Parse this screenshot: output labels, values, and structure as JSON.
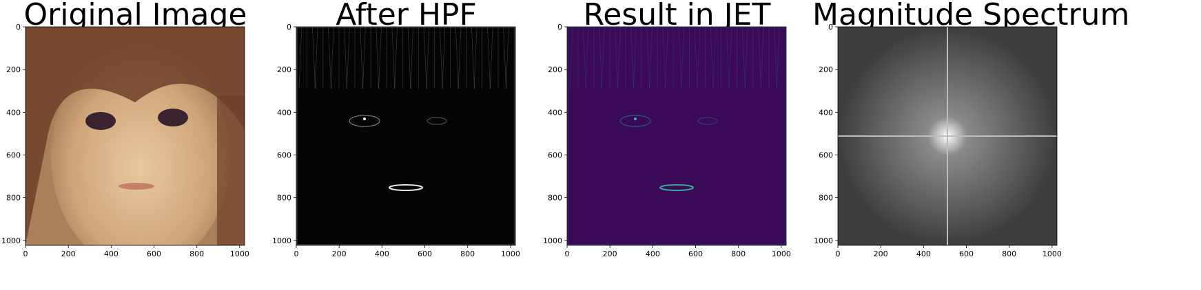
{
  "chart_data": [
    {
      "type": "image",
      "title": "Original Image",
      "image_kind": "photo-color",
      "colors": {
        "bg": "#a8805a",
        "hair": "#6e3f2a",
        "skin": "#e8c9a0",
        "eye": "#3a2230",
        "lip": "#c77f6a"
      },
      "xticks": [
        0,
        200,
        400,
        600,
        800,
        1000
      ],
      "yticks": [
        0,
        200,
        400,
        600,
        800,
        1000
      ],
      "xlim": [
        0,
        1023
      ],
      "ylim": [
        1023,
        0
      ]
    },
    {
      "type": "image",
      "title": "After HPF",
      "image_kind": "hpf-gray",
      "colors": {
        "bg": "#050505",
        "edge": "#9a9a9a",
        "hot": "#ffffff"
      },
      "xticks": [
        0,
        200,
        400,
        600,
        800,
        1000
      ],
      "yticks": [
        0,
        200,
        400,
        600,
        800,
        1000
      ],
      "xlim": [
        0,
        1023
      ],
      "ylim": [
        1023,
        0
      ]
    },
    {
      "type": "image",
      "title": "Result in JET",
      "image_kind": "hpf-colormap",
      "colors": {
        "bg": "#3b0a57",
        "edge": "#2a6f8f",
        "hot": "#35b8a0"
      },
      "xticks": [
        0,
        200,
        400,
        600,
        800,
        1000
      ],
      "yticks": [
        0,
        200,
        400,
        600,
        800,
        1000
      ],
      "xlim": [
        0,
        1023
      ],
      "ylim": [
        1023,
        0
      ]
    },
    {
      "type": "image",
      "title": "Magnitude Spectrum",
      "image_kind": "spectrum",
      "colors": {
        "bg": "#3d3d3d",
        "line": "#bdbdbd",
        "center": "#ffffff"
      },
      "xticks": [
        0,
        200,
        400,
        600,
        800,
        1000
      ],
      "yticks": [
        0,
        200,
        400,
        600,
        800,
        1000
      ],
      "xlim": [
        0,
        1023
      ],
      "ylim": [
        1023,
        0
      ]
    }
  ]
}
